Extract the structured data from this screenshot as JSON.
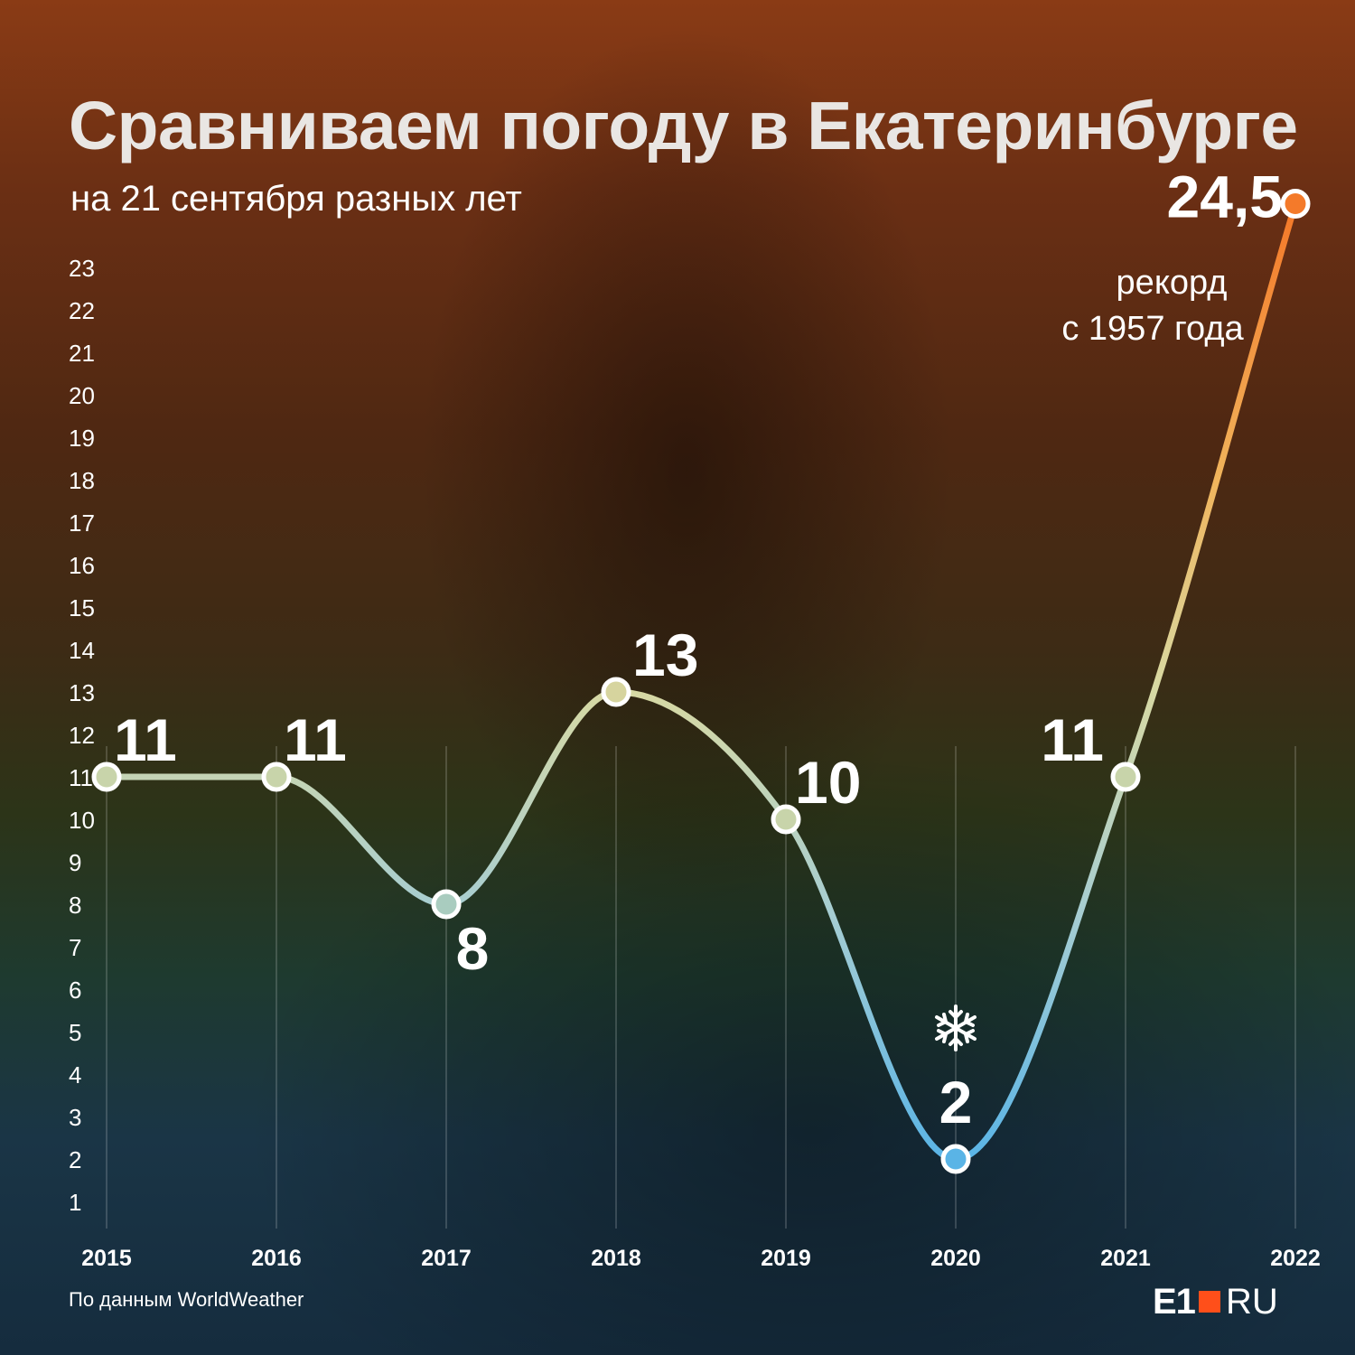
{
  "header": {
    "title": "Сравниваем погоду в Екатеринбурге",
    "subtitle": "на 21 сентября разных лет"
  },
  "footer": {
    "source": "По данным WorldWeather",
    "logo_left": "E1",
    "logo_right": "RU"
  },
  "colors": {
    "cold": "#5ab4e6",
    "mild": "#d8d9a3",
    "hot": "#f47a2a",
    "logo_accent": "#ff4f1a"
  },
  "chart_data": {
    "type": "line",
    "title": "Сравниваем погоду в Екатеринбурге",
    "subtitle": "на 21 сентября разных лет",
    "categories": [
      "2015",
      "2016",
      "2017",
      "2018",
      "2019",
      "2020",
      "2021",
      "2022"
    ],
    "values": [
      11,
      11,
      8,
      13,
      10,
      2,
      11,
      24.5
    ],
    "value_labels": [
      "11",
      "11",
      "8",
      "13",
      "10",
      "2",
      "11",
      "24,5"
    ],
    "y_ticks": [
      1,
      2,
      3,
      4,
      5,
      6,
      7,
      8,
      9,
      10,
      11,
      12,
      13,
      14,
      15,
      16,
      17,
      18,
      19,
      20,
      21,
      22,
      23
    ],
    "ylim": [
      1,
      23
    ],
    "annotations": {
      "record_year": "2022",
      "record_line1": "рекорд",
      "record_line2": "с 1957 года",
      "cold_year": "2020",
      "cold_icon": "snowflake-icon"
    },
    "grid": "vertical lines at each year",
    "smooth": true
  }
}
